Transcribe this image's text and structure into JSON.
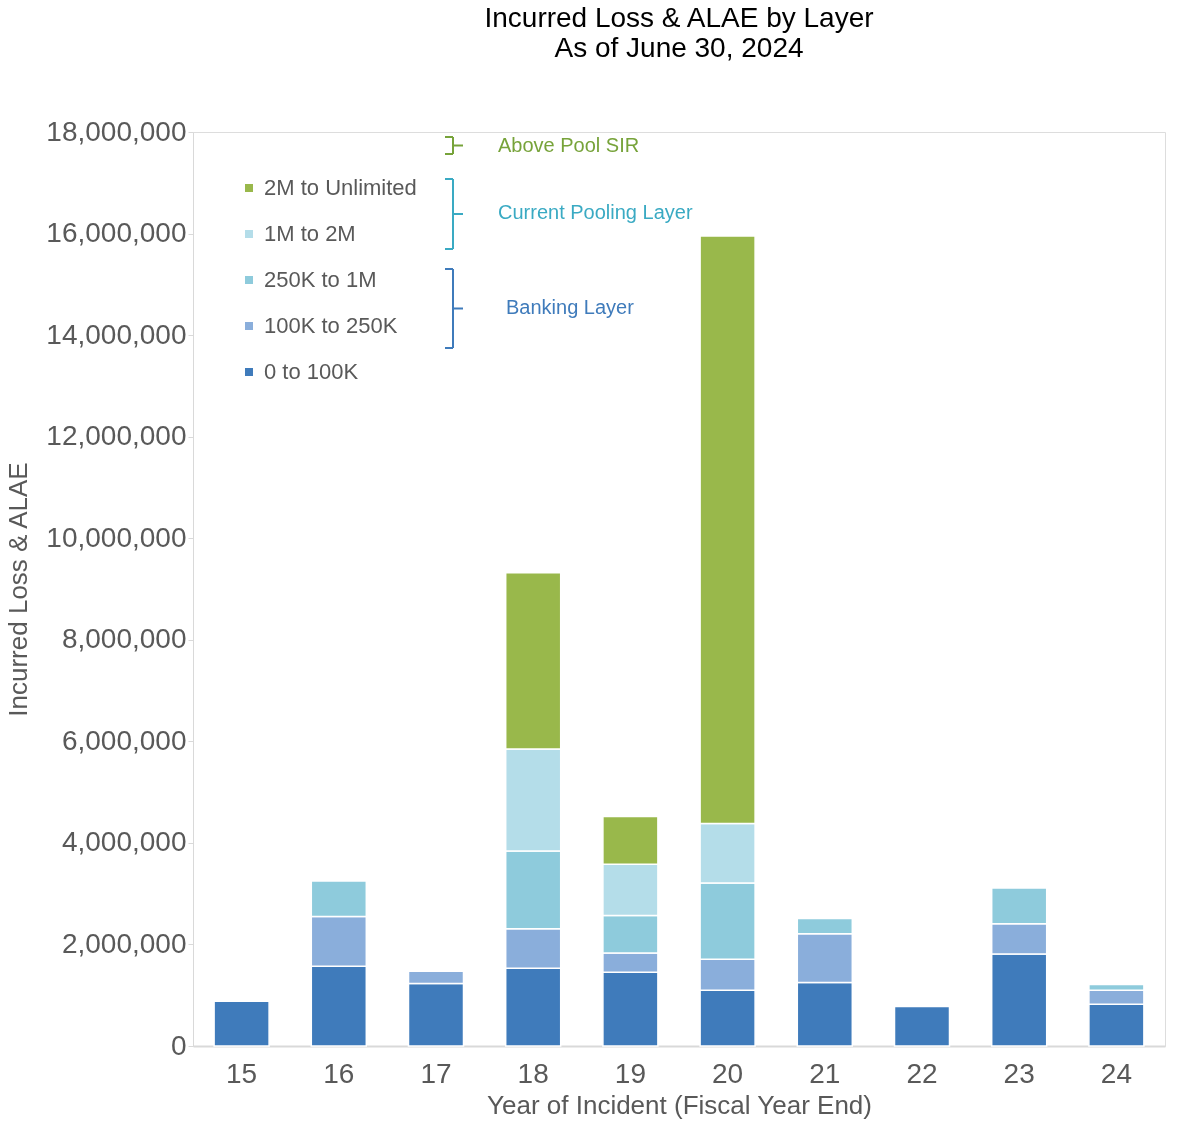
{
  "chart_data": {
    "type": "bar",
    "stacked": true,
    "title": "Incurred Loss & ALAE by Layer\nAs of June 30, 2024",
    "xlabel": "Year of Incident (Fiscal Year End)",
    "ylabel": "Incurred Loss & ALAE",
    "categories": [
      "15",
      "16",
      "17",
      "18",
      "19",
      "20",
      "21",
      "22",
      "23",
      "24"
    ],
    "series": [
      {
        "name": "0 to 100K",
        "color": "#3f7bbb",
        "values": [
          880000,
          1570000,
          1230000,
          1530000,
          1450000,
          1100000,
          1250000,
          780000,
          1810000,
          820000
        ]
      },
      {
        "name": "100K to 250K",
        "color": "#8aaedb",
        "values": [
          null,
          980000,
          240000,
          780000,
          380000,
          610000,
          960000,
          null,
          600000,
          280000
        ]
      },
      {
        "name": "250K to 1M",
        "color": "#8ecbdc",
        "values": [
          null,
          700000,
          null,
          1530000,
          740000,
          1500000,
          300000,
          null,
          700000,
          110000
        ]
      },
      {
        "name": "1M to 2M",
        "color": "#b4dde9",
        "values": [
          null,
          null,
          null,
          2010000,
          1010000,
          1170000,
          null,
          null,
          null,
          null
        ]
      },
      {
        "name": "2M to Unlimited",
        "color": "#99b84b",
        "values": [
          null,
          null,
          null,
          3470000,
          940000,
          11570000,
          null,
          null,
          null,
          null
        ]
      }
    ],
    "ylim": [
      0,
      18000000
    ],
    "yticks": [
      0,
      {
        "value": 2000000,
        "label": "2,000,000"
      },
      {
        "value": 4000000,
        "label": "4,000,000"
      },
      {
        "value": 6000000,
        "label": "6,000,000"
      },
      {
        "value": 8000000,
        "label": "8,000,000"
      },
      {
        "value": 10000000,
        "label": "10,000,000"
      },
      {
        "value": 12000000,
        "label": "12,000,000"
      },
      {
        "value": 14000000,
        "label": "14,000,000"
      },
      {
        "value": 16000000,
        "label": "16,000,000"
      },
      {
        "value": 18000000,
        "label": "18,000,000"
      }
    ],
    "grid": false,
    "legend": "top left",
    "annotations": [
      "Above Pool SIR",
      "Current Pooling Layer",
      "Banking Layer"
    ]
  }
}
